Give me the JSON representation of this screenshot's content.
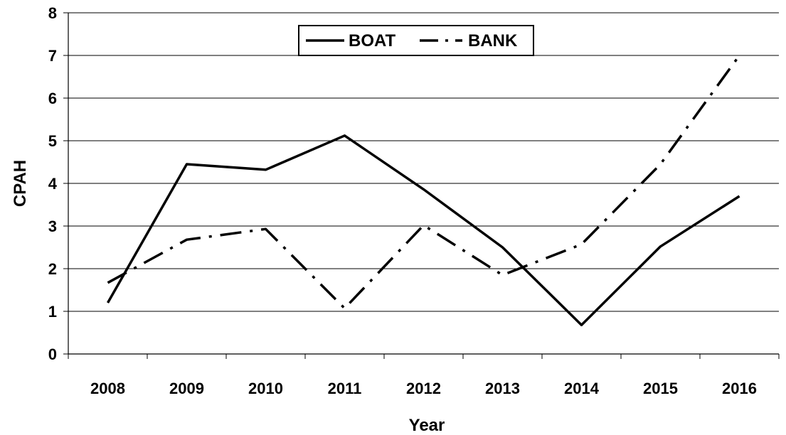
{
  "chart_data": {
    "type": "line",
    "title": "",
    "xlabel": "Year",
    "ylabel": "CPAH",
    "categories": [
      "2008",
      "2009",
      "2010",
      "2011",
      "2012",
      "2013",
      "2014",
      "2015",
      "2016"
    ],
    "ylim": [
      0,
      8
    ],
    "yticks": [
      "0",
      "1",
      "2",
      "3",
      "4",
      "5",
      "6",
      "7",
      "8"
    ],
    "grid": true,
    "legend_position": "top-center",
    "series": [
      {
        "name": "BOAT",
        "values": [
          1.2,
          4.45,
          4.32,
          5.12,
          3.86,
          2.5,
          0.68,
          2.52,
          3.7
        ],
        "style": "solid",
        "color": "#000000"
      },
      {
        "name": "BANK",
        "values": [
          1.67,
          2.68,
          2.93,
          1.07,
          3.02,
          1.85,
          2.57,
          4.45,
          7.0
        ],
        "style": "dash-dot",
        "color": "#000000"
      }
    ]
  }
}
